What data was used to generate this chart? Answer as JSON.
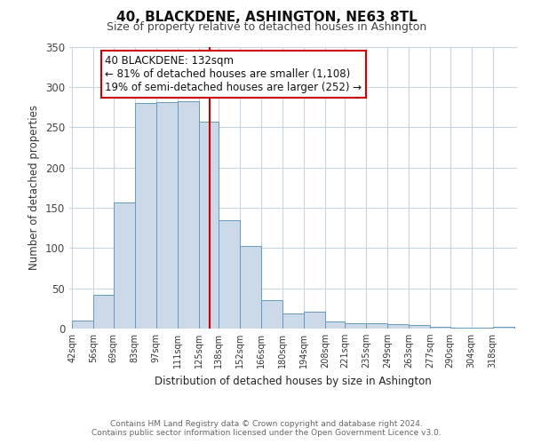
{
  "title": "40, BLACKDENE, ASHINGTON, NE63 8TL",
  "subtitle": "Size of property relative to detached houses in Ashington",
  "xlabel": "Distribution of detached houses by size in Ashington",
  "ylabel": "Number of detached properties",
  "bin_labels": [
    "42sqm",
    "56sqm",
    "69sqm",
    "83sqm",
    "97sqm",
    "111sqm",
    "125sqm",
    "138sqm",
    "152sqm",
    "166sqm",
    "180sqm",
    "194sqm",
    "208sqm",
    "221sqm",
    "235sqm",
    "249sqm",
    "263sqm",
    "277sqm",
    "290sqm",
    "304sqm",
    "318sqm"
  ],
  "bin_edges": [
    42,
    56,
    69,
    83,
    97,
    111,
    125,
    138,
    152,
    166,
    180,
    194,
    208,
    221,
    235,
    249,
    263,
    277,
    290,
    304,
    318
  ],
  "bar_heights": [
    10,
    42,
    157,
    280,
    281,
    282,
    257,
    134,
    103,
    35,
    19,
    21,
    9,
    7,
    7,
    5,
    4,
    2,
    1,
    1,
    2
  ],
  "bar_color": "#ccd9e8",
  "bar_edge_color": "#6699bb",
  "marker_value": 132,
  "marker_color": "#cc0000",
  "ylim": [
    0,
    350
  ],
  "yticks": [
    0,
    50,
    100,
    150,
    200,
    250,
    300,
    350
  ],
  "annotation_title": "40 BLACKDENE: 132sqm",
  "annotation_line1": "← 81% of detached houses are smaller (1,108)",
  "annotation_line2": "19% of semi-detached houses are larger (252) →",
  "annotation_box_color": "#ffffff",
  "annotation_box_edge_color": "#cc0000",
  "footer_line1": "Contains HM Land Registry data © Crown copyright and database right 2024.",
  "footer_line2": "Contains public sector information licensed under the Open Government Licence v3.0.",
  "background_color": "#ffffff",
  "grid_color": "#c8d4e0"
}
